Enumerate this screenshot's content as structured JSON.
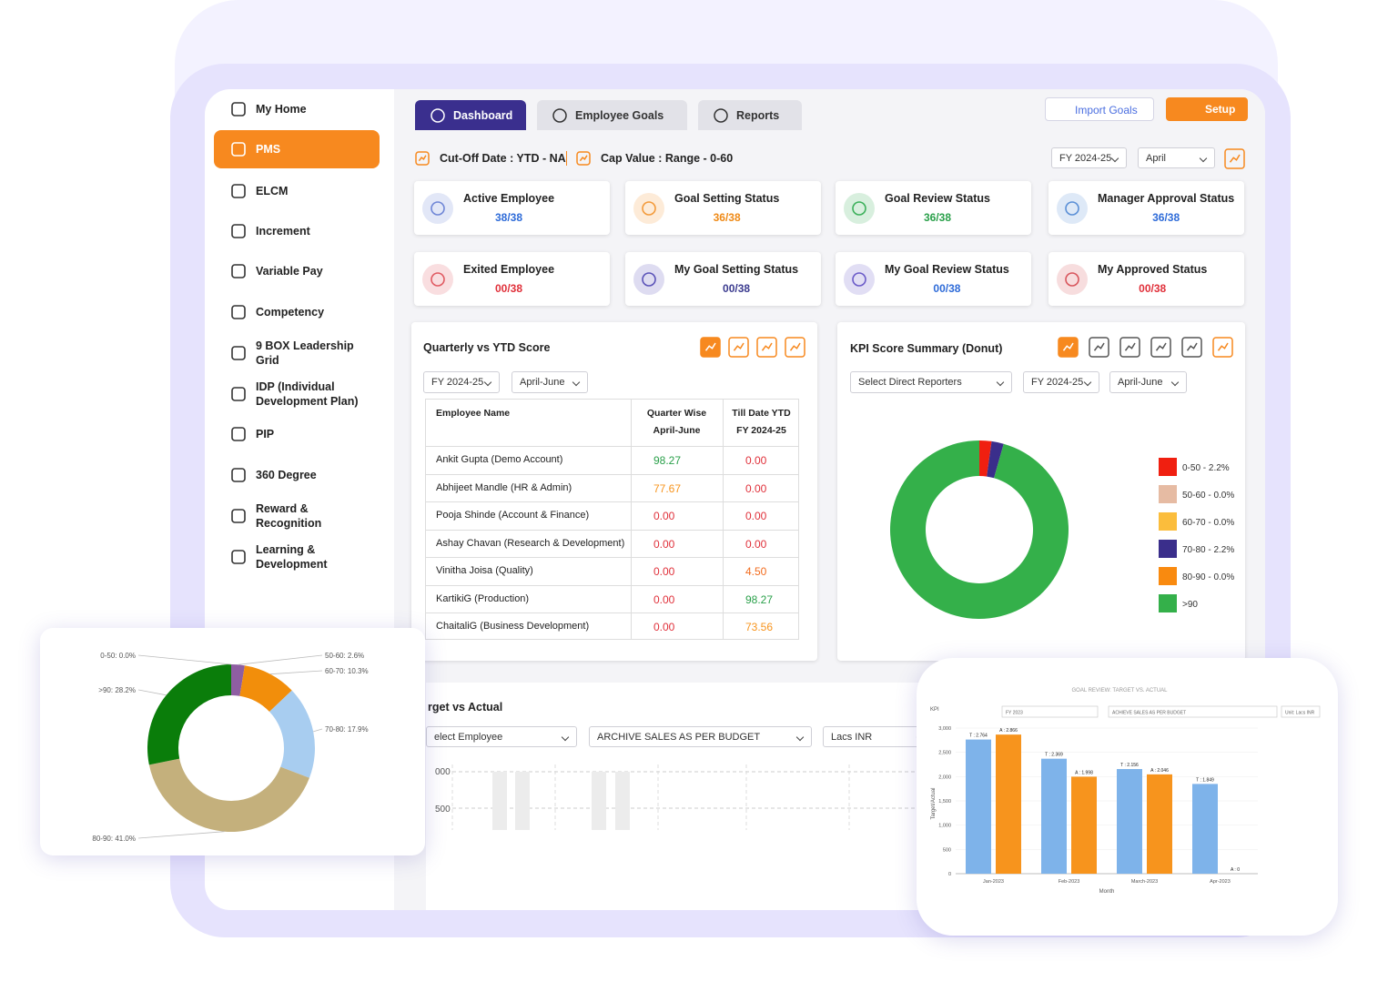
{
  "sidebar": {
    "items": [
      {
        "label": "My Home",
        "active": false
      },
      {
        "label": "PMS",
        "active": true
      },
      {
        "label": "ELCM",
        "active": false
      },
      {
        "label": "Increment",
        "active": false
      },
      {
        "label": "Variable Pay",
        "active": false
      },
      {
        "label": "Competency",
        "active": false
      },
      {
        "label": "9 BOX Leadership Grid",
        "active": false
      },
      {
        "label": "IDP (Individual Development Plan)",
        "active": false
      },
      {
        "label": "PIP",
        "active": false
      },
      {
        "label": "360 Degree",
        "active": false
      },
      {
        "label": "Reward & Recognition",
        "active": false
      },
      {
        "label": "Learning & Development",
        "active": false
      }
    ]
  },
  "tabs": [
    {
      "label": "Dashboard",
      "active": true
    },
    {
      "label": "Employee Goals",
      "active": false
    },
    {
      "label": "Reports",
      "active": false
    }
  ],
  "actions": [
    "Import Goals",
    "Setup"
  ],
  "filter_bar": {
    "cutoff": "Cut-Off Date : YTD - NA",
    "cap": "Cap Value : Range - 0-60",
    "selects": [
      "FY 2024-25",
      "April"
    ]
  },
  "cards": [
    {
      "title": "Active Employee",
      "value": "38/38",
      "color": "#2e6bd8",
      "icon_color": "#6f86d6"
    },
    {
      "title": "Goal Setting Status",
      "value": "36/38",
      "color": "#ef8a17",
      "icon_color": "#f39a3a"
    },
    {
      "title": "Goal Review Status",
      "value": "36/38",
      "color": "#2aa04a",
      "icon_color": "#3bb05a"
    },
    {
      "title": "Manager Approval Status",
      "value": "36/38",
      "color": "#2e6bd8",
      "icon_color": "#5a8fd6"
    },
    {
      "title": "Exited Employee",
      "value": "00/38",
      "color": "#e0303a",
      "icon_color": "#e05a62"
    },
    {
      "title": "My Goal Setting Status",
      "value": "00/38",
      "color": "#3b3b8f",
      "icon_color": "#5a52b8"
    },
    {
      "title": "My Goal Review Status",
      "value": "00/38",
      "color": "#2e6bd8",
      "icon_color": "#6a5ac8"
    },
    {
      "title": "My Approved Status",
      "value": "00/38",
      "color": "#e0303a",
      "icon_color": "#d8555c"
    }
  ],
  "score_table": {
    "title": "Quarterly vs YTD Score",
    "filters": [
      "FY 2024-25",
      "April-June"
    ],
    "headers": [
      [
        "Employee Name"
      ],
      [
        "Quarter Wise",
        "April-June"
      ],
      [
        "Till Date YTD",
        "FY 2024-25"
      ]
    ],
    "rows": [
      [
        "Ankit Gupta (Demo Account)",
        "98.27",
        "0.00"
      ],
      [
        "Abhijeet Mandle (HR & Admin)",
        "77.67",
        "0.00"
      ],
      [
        "Pooja Shinde (Account & Finance)",
        "0.00",
        "0.00"
      ],
      [
        "Ashay Chavan (Research & Development)",
        "0.00",
        "0.00"
      ],
      [
        "Vinitha Joisa (Quality)",
        "0.00",
        "4.50"
      ],
      [
        "KartikiG (Production)",
        "0.00",
        "98.27"
      ],
      [
        "ChaitaliG (Business Development)",
        "0.00",
        "73.56"
      ]
    ],
    "colors": [
      [
        "#2aa04a",
        "#e0303a"
      ],
      [
        "#f7941d",
        "#e0303a"
      ],
      [
        "#e0303a",
        "#e0303a"
      ],
      [
        "#e0303a",
        "#e0303a"
      ],
      [
        "#e0303a",
        "#f26b1d"
      ],
      [
        "#e0303a",
        "#2aa04a"
      ],
      [
        "#e0303a",
        "#f7941d"
      ]
    ]
  },
  "kpi_panel": {
    "title": "KPI Score Summary (Donut)",
    "filters": [
      "Select Direct Reporters",
      "FY 2024-25",
      "April-June"
    ]
  },
  "target_panel": {
    "title": "rget vs Actual",
    "selects": [
      "elect Employee",
      "ARCHIVE SALES AS PER BUDGET",
      "Lacs INR"
    ],
    "ticks": [
      "000",
      "500"
    ]
  },
  "chart_data": [
    {
      "type": "donut",
      "categories": [
        "0-50 - 2.2%",
        "50-60 - 0.0%",
        "60-70 - 0.0%",
        "70-80 - 2.2%",
        "80-90 - 0.0%",
        ">90"
      ],
      "values": [
        2.2,
        0,
        0,
        2.2,
        0,
        95.6
      ],
      "colors": [
        "#f01f10",
        "#e6bba3",
        "#fbbd3c",
        "#3a2e8b",
        "#f98a0f",
        "#34b04a"
      ],
      "legend": "right"
    },
    {
      "type": "donut",
      "categories": [
        "0-50: 0.0%",
        "50-60: 2.6%",
        "60-70: 10.3%",
        "70-80: 17.9%",
        "80-90: 41.0%",
        ">90: 28.2%"
      ],
      "values": [
        0,
        2.6,
        10.3,
        17.9,
        41.0,
        28.2
      ],
      "colors": [
        "#d9534f",
        "#8e5ea2",
        "#f28e0b",
        "#a8cdf0",
        "#c4b07c",
        "#0a7d0a"
      ]
    },
    {
      "type": "bar",
      "title": "GOAL REVIEW: TARGET VS. ACTUAL",
      "corner_label": "KPI",
      "filters": [
        "FY 2023",
        "ACHIEVE SALES AS PER BUDGET",
        "Unit: Lacs INR"
      ],
      "y_label": "Target/Actual",
      "x_label": "Month",
      "categories": [
        "Jan-2023",
        "Feb-2023",
        "March-2023",
        "Apr-2023"
      ],
      "series": [
        {
          "color": "#7eb3ea",
          "values": [
            2764,
            2369,
            2156,
            1849
          ],
          "value_labels": [
            "T : 2.764",
            "T : 2.369",
            "T : 2.156",
            "T : 1.849"
          ]
        },
        {
          "color": "#f7941d",
          "values": [
            2866,
            1998,
            2046,
            0
          ],
          "value_labels": [
            "A : 2.866",
            "A : 1.998",
            "A : 2.046",
            "A : 0"
          ]
        }
      ],
      "ylim": [
        0,
        3000
      ],
      "yticks": [
        0,
        500,
        {
          "value": 1000,
          "label": "1,000"
        },
        {
          "value": 1500,
          "label": "1,500"
        },
        {
          "value": 2000,
          "label": "2,000"
        },
        {
          "value": 2500,
          "label": "2,500"
        },
        {
          "value": 3000,
          "label": "3,000"
        }
      ]
    }
  ]
}
